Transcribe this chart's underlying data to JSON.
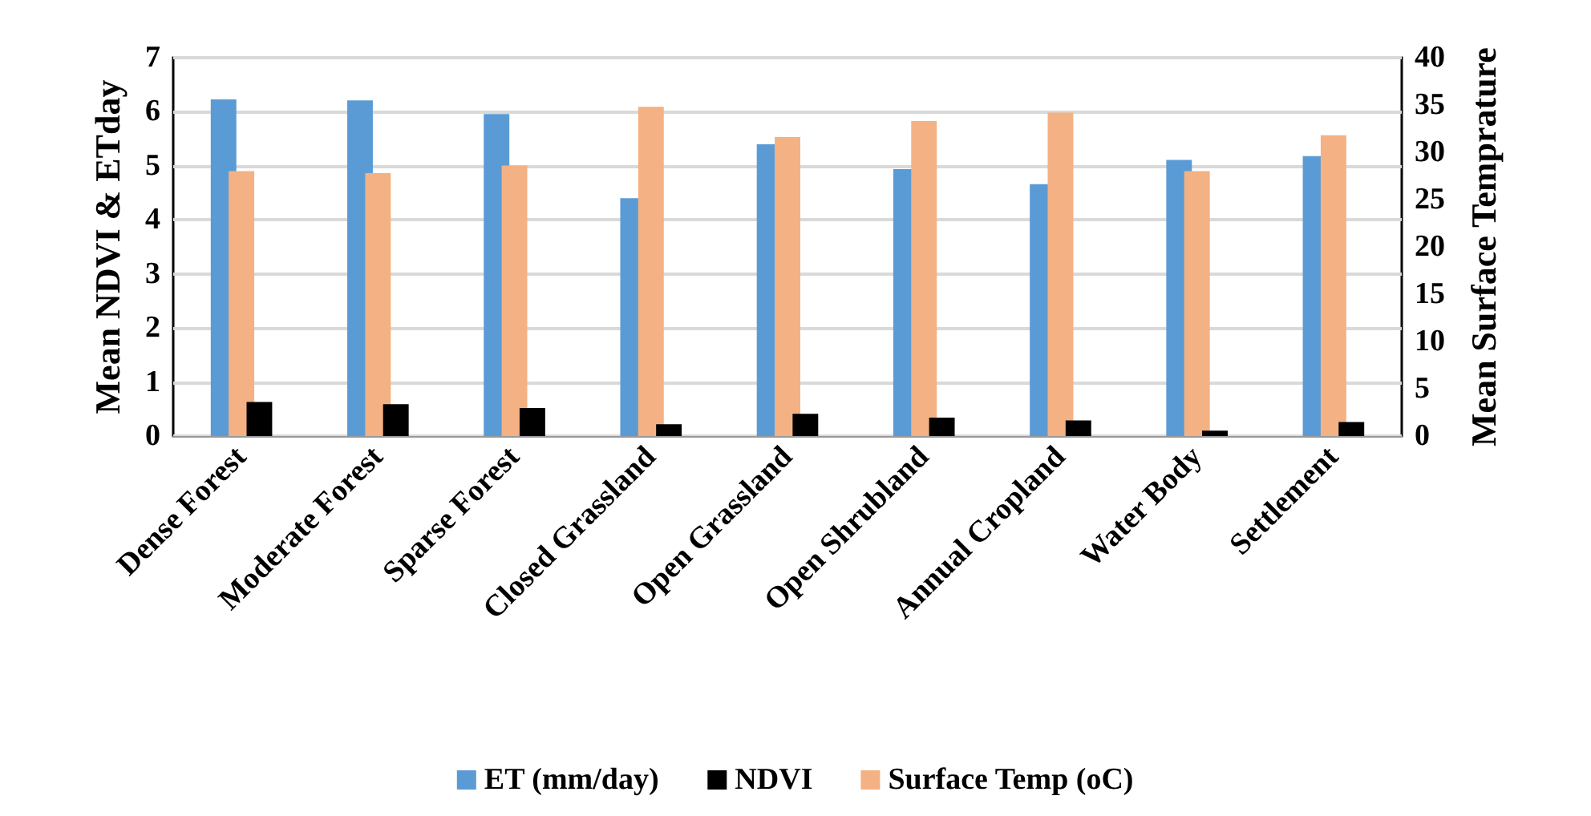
{
  "chart_data": {
    "type": "bar",
    "categories": [
      "Dense Forest",
      "Moderate Forest",
      "Sparse Forest",
      "Closed Grassland",
      "Open Grassland",
      "Open Shrubland",
      "Annual Cropland",
      "Water Body",
      "Settlement"
    ],
    "series": [
      {
        "name": "ET (mm/day)",
        "color": "#5b9bd5",
        "values": [
          6.23,
          6.21,
          5.96,
          4.4,
          5.4,
          4.94,
          4.66,
          5.11,
          5.18
        ]
      },
      {
        "name": "NDVI",
        "color": "#000000",
        "values": [
          0.63,
          0.59,
          0.52,
          0.22,
          0.41,
          0.34,
          0.29,
          0.1,
          0.26
        ]
      },
      {
        "name": "Surface Temp (oC)",
        "color": "#f4b183",
        "axis": "y2",
        "values": [
          28.0,
          27.8,
          28.6,
          34.8,
          31.6,
          33.3,
          34.2,
          28.0,
          31.8
        ]
      }
    ],
    "ylabel": "Mean NDVI & ETday",
    "y2label": "Mean Surface Temprature",
    "ylim": [
      0,
      7
    ],
    "yticks": [
      0,
      1,
      2,
      3,
      4,
      5,
      6,
      7
    ],
    "y2lim": [
      0,
      40
    ],
    "y2ticks": [
      0,
      5,
      10,
      15,
      20,
      25,
      30,
      35,
      40
    ],
    "grid": "y",
    "legend": "bottom"
  }
}
